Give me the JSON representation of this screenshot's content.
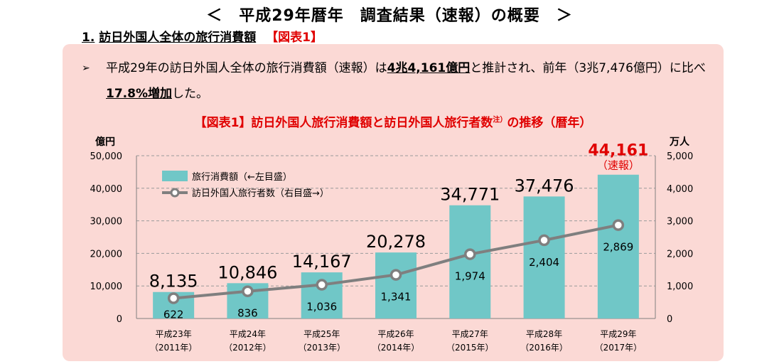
{
  "page": {
    "title": "＜　平成29年暦年　調査結果（速報）の概要　＞",
    "section": {
      "number": "1.",
      "title": "訪日外国人全体の旅行消費額",
      "ref": "【図表1】"
    }
  },
  "summary": {
    "bullet": "➢",
    "p1": "平成29年の訪日外国人全体の旅行消費額（速報）は",
    "b1": "4兆4,161億円",
    "p2": "と推計され、前年（3兆7,476億円）に比べ",
    "b2": "17.8%増加",
    "p3": "した。"
  },
  "chart_data": {
    "type": "bar",
    "title": "【図表1】訪日外国人旅行消費額と訪日外国人旅行者数",
    "title_sup": "注）",
    "title_suffix": "の推移（暦年）",
    "left_unit": "億円",
    "right_unit": "万人",
    "categories": [
      {
        "era": "平成23年",
        "year": "（2011年）"
      },
      {
        "era": "平成24年",
        "year": "（2012年）"
      },
      {
        "era": "平成25年",
        "year": "（2013年）"
      },
      {
        "era": "平成26年",
        "year": "（2014年）"
      },
      {
        "era": "平成27年",
        "year": "（2015年）"
      },
      {
        "era": "平成28年",
        "year": "（2016年）"
      },
      {
        "era": "平成29年",
        "year": "（2017年）"
      }
    ],
    "series": [
      {
        "name": "旅行消費額（←左目盛）",
        "type": "bar",
        "axis": "left",
        "color": "#70c7c7",
        "values": [
          8135,
          10846,
          14167,
          20278,
          34771,
          37476,
          44161
        ],
        "labels": [
          "8,135",
          "10,846",
          "14,167",
          "20,278",
          "34,771",
          "37,476",
          "44,161"
        ]
      },
      {
        "name": "訪日外国人旅行者数（右目盛→）",
        "type": "line",
        "axis": "right",
        "color": "#7f7f7f",
        "values": [
          622,
          836,
          1036,
          1341,
          1974,
          2404,
          2869
        ],
        "labels": [
          "622",
          "836",
          "1,036",
          "1,341",
          "1,974",
          "2,404",
          "2,869"
        ]
      }
    ],
    "ylim_left": [
      0,
      50000
    ],
    "ylim_right": [
      0,
      5000
    ],
    "left_ticks": [
      "0",
      "10,000",
      "20,000",
      "30,000",
      "40,000",
      "50,000"
    ],
    "right_ticks": [
      "0",
      "1,000",
      "2,000",
      "3,000",
      "4,000",
      "5,000"
    ],
    "highlight_note": "（速報）",
    "highlight_color": "#e00000",
    "grid": true,
    "legend_position": "top-left"
  }
}
